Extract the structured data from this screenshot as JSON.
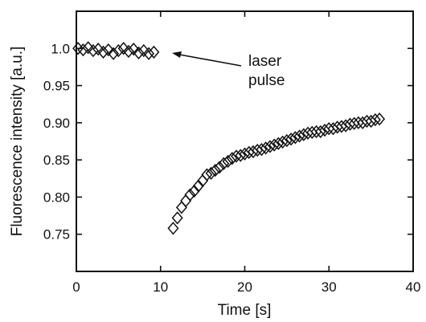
{
  "chart_data": {
    "type": "scatter",
    "xlabel": "Time [s]",
    "ylabel": "Fluorescence intensity [a.u.]",
    "xlim": [
      0,
      40
    ],
    "ylim": [
      0.7,
      1.05
    ],
    "xticks": [
      0,
      10,
      20,
      30,
      40
    ],
    "yticks": [
      0.75,
      0.8,
      0.85,
      0.9,
      0.95,
      1.0
    ],
    "xtick_labels": [
      "0",
      "10",
      "20",
      "30",
      "40"
    ],
    "ytick_labels": [
      "0.75",
      "0.80",
      "0.85",
      "0.90",
      "0.95",
      "1.0"
    ],
    "marker": "diamond-open",
    "grid": false,
    "annotation": {
      "line1": "laser",
      "line2": "pulse",
      "points_to": [
        9.8,
        0.994
      ]
    },
    "series": [
      {
        "x": [
          0.2,
          0.8,
          1.4,
          2.0,
          2.6,
          3.2,
          3.8,
          4.4,
          5.0,
          5.6,
          6.2,
          6.8,
          7.4,
          8.0,
          8.6,
          9.2
        ],
        "values": [
          1.0,
          0.998,
          1.001,
          0.997,
          0.999,
          0.995,
          0.998,
          0.993,
          0.997,
          1.0,
          0.996,
          0.999,
          0.994,
          0.997,
          0.993,
          0.995
        ]
      },
      {
        "x": [
          11.5,
          12.0,
          12.5,
          13.0,
          13.5,
          14.0,
          14.5,
          15.0,
          15.5,
          16.0,
          16.5,
          17.0,
          17.5,
          18.0,
          18.5,
          19.0,
          19.5,
          20.0,
          20.5,
          21.0,
          21.5,
          22.0,
          22.5,
          23.0,
          23.5,
          24.0,
          24.5,
          25.0,
          25.5,
          26.0,
          26.5,
          27.0,
          27.5,
          28.0,
          28.5,
          29.0,
          29.5,
          30.0,
          30.5,
          31.0,
          31.5,
          32.0,
          32.5,
          33.0,
          33.5,
          34.0,
          34.5,
          35.0,
          35.5,
          36.0
        ],
        "values": [
          0.758,
          0.772,
          0.786,
          0.795,
          0.803,
          0.808,
          0.815,
          0.822,
          0.83,
          0.832,
          0.836,
          0.84,
          0.845,
          0.848,
          0.852,
          0.855,
          0.856,
          0.858,
          0.86,
          0.861,
          0.863,
          0.864,
          0.866,
          0.868,
          0.87,
          0.872,
          0.874,
          0.876,
          0.878,
          0.88,
          0.882,
          0.884,
          0.886,
          0.887,
          0.888,
          0.888,
          0.89,
          0.892,
          0.892,
          0.894,
          0.895,
          0.896,
          0.898,
          0.899,
          0.9,
          0.9,
          0.902,
          0.902,
          0.904,
          0.905
        ]
      }
    ]
  }
}
